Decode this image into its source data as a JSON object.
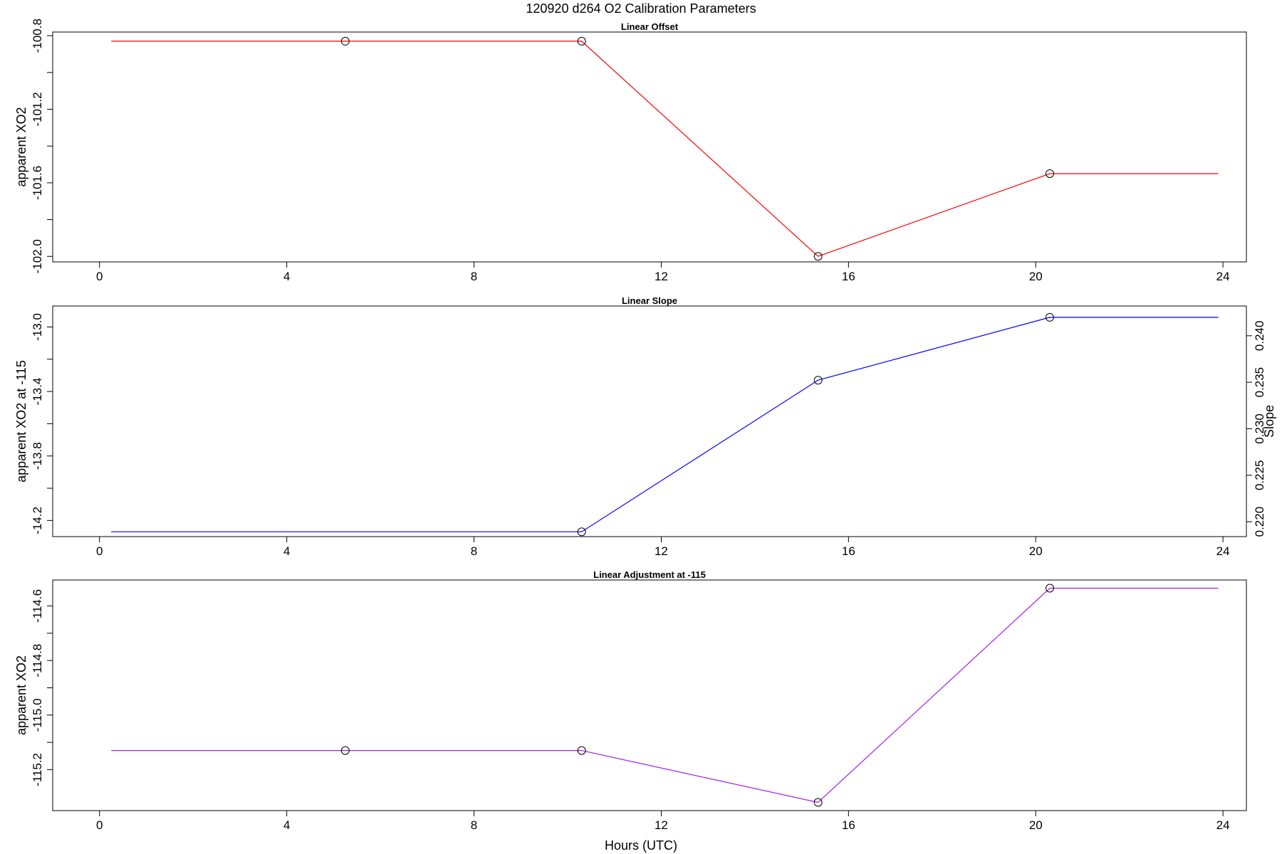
{
  "title": "120920   d264   O2 Calibration Parameters",
  "xlabel": "Hours (UTC)",
  "colors": {
    "offset": "#ff0000",
    "slope": "#0000ff",
    "adjustment": "#a020f0",
    "points": "#000000"
  },
  "chart_data": [
    {
      "type": "line",
      "title": "Linear Offset",
      "ylabel": "apparent XO2",
      "xlim": [
        -1,
        24.5
      ],
      "ylim": [
        -102.03,
        -100.78
      ],
      "xticks": [
        0,
        4,
        8,
        12,
        16,
        20,
        24
      ],
      "xtick_labels": [
        "0",
        "4",
        "8",
        "12",
        "16",
        "20",
        "24"
      ],
      "yticks": [
        -100.8,
        -101.0,
        -101.2,
        -101.4,
        -101.6,
        -101.8,
        -102.0
      ],
      "ytick_labels": [
        "-100.8",
        "",
        "-101.2",
        "",
        "-101.6",
        "",
        "-102.0"
      ],
      "line": {
        "x": [
          0.25,
          5.25,
          10.3,
          15.35,
          20.3,
          23.9
        ],
        "y": [
          -100.83,
          -100.83,
          -100.83,
          -102.0,
          -101.55,
          -101.55
        ]
      },
      "points": {
        "x": [
          5.25,
          10.3,
          15.35,
          20.3
        ],
        "y": [
          -100.83,
          -100.83,
          -102.0,
          -101.55
        ]
      },
      "grid": false
    },
    {
      "type": "line",
      "title": "Linear Slope",
      "ylabel": "apparent XO2 at -115",
      "ylabel_right": "Slope",
      "xlim": [
        -1,
        24.5
      ],
      "ylim": [
        -14.3,
        -12.87
      ],
      "xticks": [
        0,
        4,
        8,
        12,
        16,
        20,
        24
      ],
      "xtick_labels": [
        "0",
        "4",
        "8",
        "12",
        "16",
        "20",
        "24"
      ],
      "yticks": [
        -13.0,
        -13.2,
        -13.4,
        -13.6,
        -13.8,
        -14.0,
        -14.2
      ],
      "ytick_labels": [
        "-13.0",
        "",
        "-13.4",
        "",
        "-13.8",
        "",
        "-14.2"
      ],
      "right_ylim": [
        0.2184,
        0.2432
      ],
      "right_yticks": [
        0.22,
        0.225,
        0.23,
        0.235,
        0.24
      ],
      "right_ytick_labels": [
        "0.220",
        "0.225",
        "0.230",
        "0.235",
        "0.240"
      ],
      "line": {
        "x": [
          0.25,
          10.3,
          15.35,
          20.3,
          23.9
        ],
        "y": [
          -14.27,
          -14.27,
          -13.33,
          -12.94,
          -12.94
        ]
      },
      "points": {
        "x": [
          10.3,
          15.35,
          20.3
        ],
        "y": [
          -14.27,
          -13.33,
          -12.94
        ]
      },
      "grid": false
    },
    {
      "type": "line",
      "title": "Linear Adjustment at -115",
      "ylabel": "apparent XO2",
      "xlim": [
        -1,
        24.5
      ],
      "ylim": [
        -115.35,
        -114.505
      ],
      "xticks": [
        0,
        4,
        8,
        12,
        16,
        20,
        24
      ],
      "xtick_labels": [
        "0",
        "4",
        "8",
        "12",
        "16",
        "20",
        "24"
      ],
      "yticks": [
        -114.6,
        -114.7,
        -114.8,
        -114.9,
        -115.0,
        -115.1,
        -115.2
      ],
      "ytick_labels": [
        "-114.6",
        "",
        "-114.8",
        "",
        "-115.0",
        "",
        "-115.2"
      ],
      "line": {
        "x": [
          0.25,
          5.25,
          10.3,
          15.35,
          20.3,
          23.9
        ],
        "y": [
          -115.13,
          -115.13,
          -115.13,
          -115.32,
          -114.535,
          -114.535
        ]
      },
      "points": {
        "x": [
          5.25,
          10.3,
          15.35,
          20.3
        ],
        "y": [
          -115.13,
          -115.13,
          -115.32,
          -114.535
        ]
      },
      "grid": false
    }
  ]
}
